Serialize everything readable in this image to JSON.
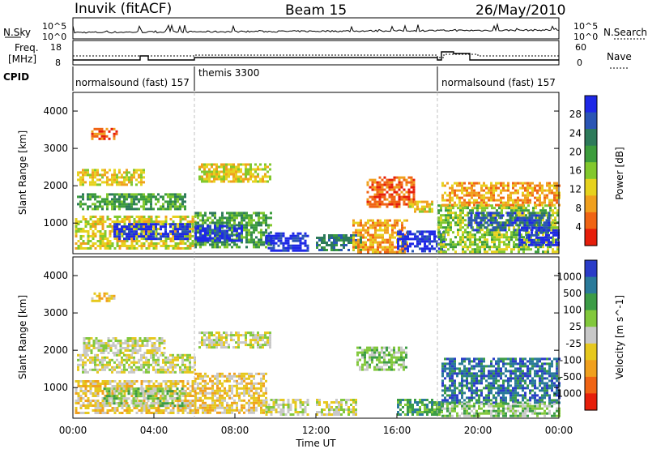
{
  "header": {
    "radar": "Inuvik (fitACF)",
    "beam": "Beam 15",
    "date": "26/May/2010"
  },
  "top_panel": {
    "left_label": "N.Sky",
    "right_label": "N.Search",
    "left_ticks": [
      "10^5",
      "10^0"
    ],
    "right_ticks": [
      "10^5",
      "10^0"
    ]
  },
  "freq_panel": {
    "left_label_1": "Freq.",
    "left_label_2": "[MHz]",
    "right_label": "Nave",
    "left_ticks": [
      "18",
      "8"
    ],
    "right_ticks": [
      "60",
      "0"
    ]
  },
  "cpid": {
    "label": "CPID",
    "segments": [
      {
        "name": "normalsound (fast) 157",
        "start_hour": 0,
        "end_hour": 6
      },
      {
        "name": "themis 3300",
        "start_hour": 6,
        "end_hour": 18
      },
      {
        "name": "normalsound (fast) 157",
        "start_hour": 18,
        "end_hour": 24
      }
    ]
  },
  "colors": {
    "power_scale": [
      "#1e28e6",
      "#2a55b4",
      "#2d7a5a",
      "#3c9c3c",
      "#82c82d",
      "#e6d21e",
      "#f0a01e",
      "#f06414",
      "#e61e0a"
    ],
    "velocity_scale": [
      "#2a3cc8",
      "#2a7a9a",
      "#3c9c46",
      "#82c83c",
      "#c8c8c8",
      "#e6c81e",
      "#f0a01e",
      "#f06414",
      "#e61e0a"
    ],
    "divider": "#b0b0b0"
  },
  "chart_data": [
    {
      "type": "heatmap",
      "title": "",
      "xlabel": "Time UT",
      "ylabel": "Slant Range [km]",
      "xlim": [
        0,
        24
      ],
      "ylim": [
        180,
        4500
      ],
      "x_ticks": [
        "00:00",
        "04:00",
        "08:00",
        "12:00",
        "16:00",
        "20:00",
        "00:00"
      ],
      "y_ticks": [
        1000,
        2000,
        3000,
        4000
      ],
      "colorbar": {
        "label": "Power [dB]",
        "ticks": [
          "28",
          "24",
          "20",
          "16",
          "12",
          "8",
          "4"
        ],
        "range": [
          0,
          30
        ]
      },
      "regions": [
        {
          "t0": 0.1,
          "t1": 6.0,
          "r0": 300,
          "r1": 1200,
          "level": 3
        },
        {
          "t0": 2.0,
          "t1": 5.8,
          "r0": 600,
          "r1": 1000,
          "level": 8
        },
        {
          "t0": 0.2,
          "t1": 5.5,
          "r0": 1400,
          "r1": 1800,
          "level": 5
        },
        {
          "t0": 0.2,
          "t1": 3.5,
          "r0": 2000,
          "r1": 2450,
          "level": 3
        },
        {
          "t0": 0.9,
          "t1": 2.2,
          "r0": 3250,
          "r1": 3550,
          "level": 1
        },
        {
          "t0": 6.0,
          "t1": 9.8,
          "r0": 350,
          "r1": 1300,
          "level": 5
        },
        {
          "t0": 6.0,
          "t1": 8.3,
          "r0": 550,
          "r1": 950,
          "level": 8
        },
        {
          "t0": 6.2,
          "t1": 9.8,
          "r0": 2100,
          "r1": 2600,
          "level": 3
        },
        {
          "t0": 9.5,
          "t1": 11.6,
          "r0": 250,
          "r1": 750,
          "level": 8
        },
        {
          "t0": 12.0,
          "t1": 14.2,
          "r0": 250,
          "r1": 700,
          "level": 6
        },
        {
          "t0": 13.8,
          "t1": 16.5,
          "r0": 250,
          "r1": 1100,
          "level": 2
        },
        {
          "t0": 16.0,
          "t1": 18.3,
          "r0": 250,
          "r1": 800,
          "level": 8
        },
        {
          "t0": 14.5,
          "t1": 16.9,
          "r0": 1450,
          "r1": 2250,
          "level": 1
        },
        {
          "t0": 16.6,
          "t1": 17.8,
          "r0": 1300,
          "r1": 1600,
          "level": 3
        },
        {
          "t0": 18.0,
          "t1": 24.0,
          "r0": 250,
          "r1": 1500,
          "level": 4
        },
        {
          "t0": 19.5,
          "t1": 23.5,
          "r0": 800,
          "r1": 1300,
          "level": 7
        },
        {
          "t0": 22.0,
          "t1": 24.0,
          "r0": 400,
          "r1": 900,
          "level": 8
        },
        {
          "t0": 18.2,
          "t1": 24.0,
          "r0": 1500,
          "r1": 2100,
          "level": 2
        }
      ]
    },
    {
      "type": "heatmap",
      "title": "",
      "xlabel": "Time UT",
      "ylabel": "Slant Range [km]",
      "xlim": [
        0,
        24
      ],
      "ylim": [
        180,
        4500
      ],
      "x_ticks": [
        "00:00",
        "04:00",
        "08:00",
        "12:00",
        "16:00",
        "20:00",
        "00:00"
      ],
      "y_ticks": [
        1000,
        2000,
        3000,
        4000
      ],
      "colorbar": {
        "label": "Velocity [m s^-1]",
        "ticks": [
          "1000",
          "500",
          "100",
          "25",
          "-25",
          "-100",
          "-500",
          "-1000"
        ],
        "range": [
          -1000,
          1000
        ]
      },
      "regions": [
        {
          "t0": 0.1,
          "t1": 6.0,
          "r0": 300,
          "r1": 1200,
          "level": 3
        },
        {
          "t0": 1.5,
          "t1": 5.5,
          "r0": 500,
          "r1": 1000,
          "level": 5
        },
        {
          "t0": 0.2,
          "t1": 6.0,
          "r0": 1400,
          "r1": 1900,
          "level": 4
        },
        {
          "t0": 0.5,
          "t1": 4.5,
          "r0": 1900,
          "r1": 2350,
          "level": 4
        },
        {
          "t0": 0.9,
          "t1": 2.0,
          "r0": 3300,
          "r1": 3550,
          "level": 3
        },
        {
          "t0": 6.0,
          "t1": 9.5,
          "r0": 300,
          "r1": 1400,
          "level": 3
        },
        {
          "t0": 6.2,
          "t1": 9.8,
          "r0": 2100,
          "r1": 2500,
          "level": 4
        },
        {
          "t0": 9.5,
          "t1": 11.6,
          "r0": 250,
          "r1": 700,
          "level": 4
        },
        {
          "t0": 12.0,
          "t1": 14.0,
          "r0": 250,
          "r1": 700,
          "level": 4
        },
        {
          "t0": 14.0,
          "t1": 16.5,
          "r0": 1450,
          "r1": 2100,
          "level": 5
        },
        {
          "t0": 16.0,
          "t1": 18.2,
          "r0": 250,
          "r1": 700,
          "level": 6
        },
        {
          "t0": 18.2,
          "t1": 24.0,
          "r0": 600,
          "r1": 1800,
          "level": 7
        },
        {
          "t0": 18.2,
          "t1": 24.0,
          "r0": 250,
          "r1": 600,
          "level": 5
        }
      ]
    }
  ]
}
